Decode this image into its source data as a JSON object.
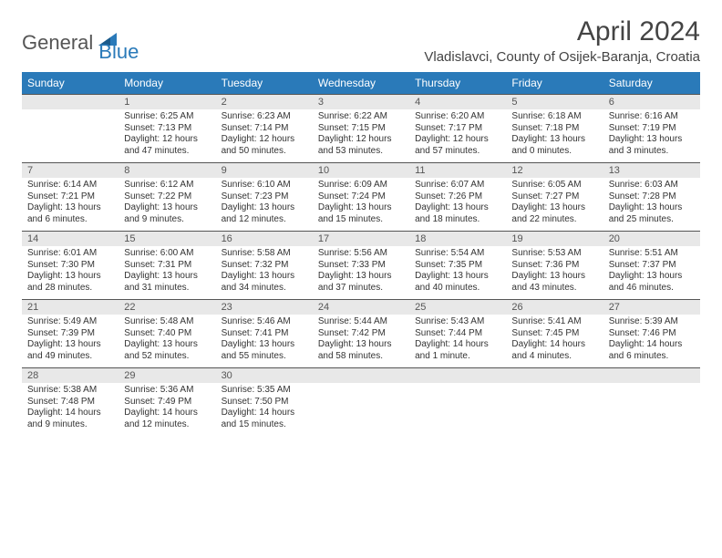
{
  "logo": {
    "part1": "General",
    "part2": "Blue"
  },
  "title": "April 2024",
  "location": "Vladislavci, County of Osijek-Baranja, Croatia",
  "colors": {
    "headerBg": "#2a7ab9",
    "headerText": "#ffffff",
    "dateBg": "#e8e8e8",
    "rowBorder": "#555555",
    "bodyText": "#333333"
  },
  "dayNames": [
    "Sunday",
    "Monday",
    "Tuesday",
    "Wednesday",
    "Thursday",
    "Friday",
    "Saturday"
  ],
  "weeks": [
    [
      null,
      {
        "n": "1",
        "sr": "Sunrise: 6:25 AM",
        "ss": "Sunset: 7:13 PM",
        "d1": "Daylight: 12 hours",
        "d2": "and 47 minutes."
      },
      {
        "n": "2",
        "sr": "Sunrise: 6:23 AM",
        "ss": "Sunset: 7:14 PM",
        "d1": "Daylight: 12 hours",
        "d2": "and 50 minutes."
      },
      {
        "n": "3",
        "sr": "Sunrise: 6:22 AM",
        "ss": "Sunset: 7:15 PM",
        "d1": "Daylight: 12 hours",
        "d2": "and 53 minutes."
      },
      {
        "n": "4",
        "sr": "Sunrise: 6:20 AM",
        "ss": "Sunset: 7:17 PM",
        "d1": "Daylight: 12 hours",
        "d2": "and 57 minutes."
      },
      {
        "n": "5",
        "sr": "Sunrise: 6:18 AM",
        "ss": "Sunset: 7:18 PM",
        "d1": "Daylight: 13 hours",
        "d2": "and 0 minutes."
      },
      {
        "n": "6",
        "sr": "Sunrise: 6:16 AM",
        "ss": "Sunset: 7:19 PM",
        "d1": "Daylight: 13 hours",
        "d2": "and 3 minutes."
      }
    ],
    [
      {
        "n": "7",
        "sr": "Sunrise: 6:14 AM",
        "ss": "Sunset: 7:21 PM",
        "d1": "Daylight: 13 hours",
        "d2": "and 6 minutes."
      },
      {
        "n": "8",
        "sr": "Sunrise: 6:12 AM",
        "ss": "Sunset: 7:22 PM",
        "d1": "Daylight: 13 hours",
        "d2": "and 9 minutes."
      },
      {
        "n": "9",
        "sr": "Sunrise: 6:10 AM",
        "ss": "Sunset: 7:23 PM",
        "d1": "Daylight: 13 hours",
        "d2": "and 12 minutes."
      },
      {
        "n": "10",
        "sr": "Sunrise: 6:09 AM",
        "ss": "Sunset: 7:24 PM",
        "d1": "Daylight: 13 hours",
        "d2": "and 15 minutes."
      },
      {
        "n": "11",
        "sr": "Sunrise: 6:07 AM",
        "ss": "Sunset: 7:26 PM",
        "d1": "Daylight: 13 hours",
        "d2": "and 18 minutes."
      },
      {
        "n": "12",
        "sr": "Sunrise: 6:05 AM",
        "ss": "Sunset: 7:27 PM",
        "d1": "Daylight: 13 hours",
        "d2": "and 22 minutes."
      },
      {
        "n": "13",
        "sr": "Sunrise: 6:03 AM",
        "ss": "Sunset: 7:28 PM",
        "d1": "Daylight: 13 hours",
        "d2": "and 25 minutes."
      }
    ],
    [
      {
        "n": "14",
        "sr": "Sunrise: 6:01 AM",
        "ss": "Sunset: 7:30 PM",
        "d1": "Daylight: 13 hours",
        "d2": "and 28 minutes."
      },
      {
        "n": "15",
        "sr": "Sunrise: 6:00 AM",
        "ss": "Sunset: 7:31 PM",
        "d1": "Daylight: 13 hours",
        "d2": "and 31 minutes."
      },
      {
        "n": "16",
        "sr": "Sunrise: 5:58 AM",
        "ss": "Sunset: 7:32 PM",
        "d1": "Daylight: 13 hours",
        "d2": "and 34 minutes."
      },
      {
        "n": "17",
        "sr": "Sunrise: 5:56 AM",
        "ss": "Sunset: 7:33 PM",
        "d1": "Daylight: 13 hours",
        "d2": "and 37 minutes."
      },
      {
        "n": "18",
        "sr": "Sunrise: 5:54 AM",
        "ss": "Sunset: 7:35 PM",
        "d1": "Daylight: 13 hours",
        "d2": "and 40 minutes."
      },
      {
        "n": "19",
        "sr": "Sunrise: 5:53 AM",
        "ss": "Sunset: 7:36 PM",
        "d1": "Daylight: 13 hours",
        "d2": "and 43 minutes."
      },
      {
        "n": "20",
        "sr": "Sunrise: 5:51 AM",
        "ss": "Sunset: 7:37 PM",
        "d1": "Daylight: 13 hours",
        "d2": "and 46 minutes."
      }
    ],
    [
      {
        "n": "21",
        "sr": "Sunrise: 5:49 AM",
        "ss": "Sunset: 7:39 PM",
        "d1": "Daylight: 13 hours",
        "d2": "and 49 minutes."
      },
      {
        "n": "22",
        "sr": "Sunrise: 5:48 AM",
        "ss": "Sunset: 7:40 PM",
        "d1": "Daylight: 13 hours",
        "d2": "and 52 minutes."
      },
      {
        "n": "23",
        "sr": "Sunrise: 5:46 AM",
        "ss": "Sunset: 7:41 PM",
        "d1": "Daylight: 13 hours",
        "d2": "and 55 minutes."
      },
      {
        "n": "24",
        "sr": "Sunrise: 5:44 AM",
        "ss": "Sunset: 7:42 PM",
        "d1": "Daylight: 13 hours",
        "d2": "and 58 minutes."
      },
      {
        "n": "25",
        "sr": "Sunrise: 5:43 AM",
        "ss": "Sunset: 7:44 PM",
        "d1": "Daylight: 14 hours",
        "d2": "and 1 minute."
      },
      {
        "n": "26",
        "sr": "Sunrise: 5:41 AM",
        "ss": "Sunset: 7:45 PM",
        "d1": "Daylight: 14 hours",
        "d2": "and 4 minutes."
      },
      {
        "n": "27",
        "sr": "Sunrise: 5:39 AM",
        "ss": "Sunset: 7:46 PM",
        "d1": "Daylight: 14 hours",
        "d2": "and 6 minutes."
      }
    ],
    [
      {
        "n": "28",
        "sr": "Sunrise: 5:38 AM",
        "ss": "Sunset: 7:48 PM",
        "d1": "Daylight: 14 hours",
        "d2": "and 9 minutes."
      },
      {
        "n": "29",
        "sr": "Sunrise: 5:36 AM",
        "ss": "Sunset: 7:49 PM",
        "d1": "Daylight: 14 hours",
        "d2": "and 12 minutes."
      },
      {
        "n": "30",
        "sr": "Sunrise: 5:35 AM",
        "ss": "Sunset: 7:50 PM",
        "d1": "Daylight: 14 hours",
        "d2": "and 15 minutes."
      },
      null,
      null,
      null,
      null
    ]
  ]
}
